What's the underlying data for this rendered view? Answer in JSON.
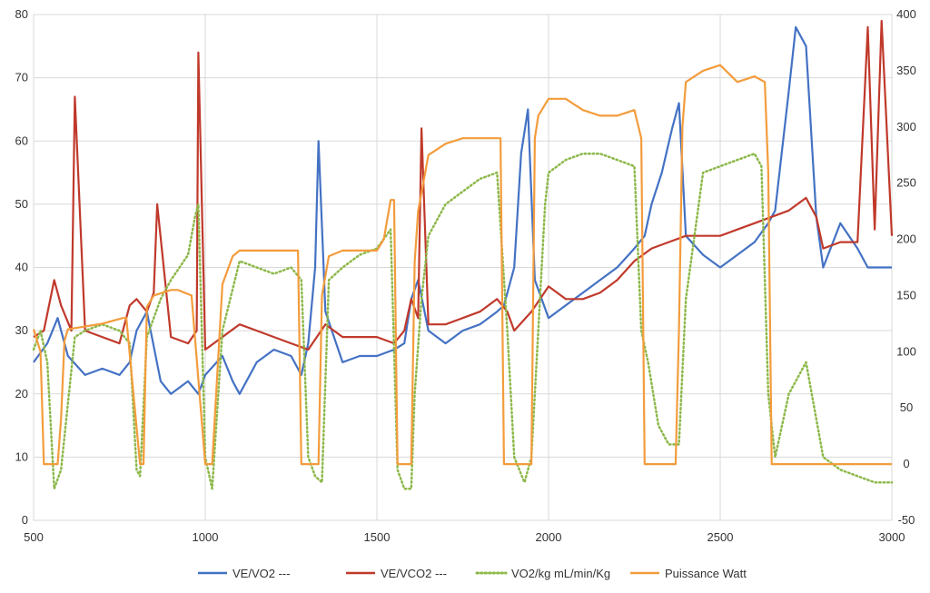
{
  "chart_data": {
    "type": "line",
    "title": "",
    "xlabel": "",
    "ylabel": "",
    "y2label": "",
    "grid": true,
    "legend_position": "bottom",
    "xlim": [
      500,
      3000
    ],
    "ylim": [
      0,
      80
    ],
    "y2lim": [
      -50,
      400
    ],
    "x_ticks": [
      "500",
      "1000",
      "1500",
      "2000",
      "2500",
      "3000"
    ],
    "y_ticks": [
      "0",
      "10",
      "20",
      "30",
      "40",
      "50",
      "60",
      "70",
      "80"
    ],
    "y2_ticks": [
      "-50",
      "0",
      "50",
      "100",
      "150",
      "200",
      "250",
      "300",
      "350",
      "400"
    ],
    "series": [
      {
        "name": "VE/VO2 ---",
        "axis": "left",
        "color": "#4472C4",
        "style": "solid",
        "x": [
          500,
          540,
          570,
          600,
          650,
          700,
          750,
          780,
          800,
          830,
          870,
          900,
          950,
          980,
          1000,
          1050,
          1080,
          1100,
          1150,
          1200,
          1250,
          1280,
          1300,
          1320,
          1330,
          1350,
          1400,
          1450,
          1500,
          1550,
          1580,
          1600,
          1620,
          1650,
          1700,
          1750,
          1800,
          1850,
          1870,
          1900,
          1920,
          1940,
          1960,
          2000,
          2050,
          2100,
          2150,
          2200,
          2250,
          2280,
          2300,
          2330,
          2360,
          2380,
          2400,
          2450,
          2500,
          2550,
          2600,
          2640,
          2660,
          2700,
          2720,
          2750,
          2780,
          2800,
          2850,
          2900,
          2930,
          2950,
          3000
        ],
        "y": [
          25,
          28,
          32,
          26,
          23,
          24,
          23,
          25,
          30,
          33,
          22,
          20,
          22,
          20,
          23,
          26,
          22,
          20,
          25,
          27,
          26,
          23,
          28,
          40,
          60,
          33,
          25,
          26,
          26,
          27,
          28,
          35,
          38,
          30,
          28,
          30,
          31,
          33,
          34,
          40,
          58,
          65,
          38,
          32,
          34,
          36,
          38,
          40,
          43,
          45,
          50,
          55,
          62,
          66,
          45,
          42,
          40,
          42,
          44,
          47,
          49,
          68,
          78,
          75,
          48,
          40,
          47,
          43,
          40,
          40,
          40
        ]
      },
      {
        "name": "VE/VCO2 ---",
        "axis": "left",
        "color": "#C0392B",
        "style": "solid",
        "x": [
          500,
          530,
          560,
          580,
          610,
          620,
          650,
          700,
          750,
          780,
          800,
          830,
          850,
          860,
          900,
          950,
          975,
          980,
          1000,
          1050,
          1100,
          1150,
          1200,
          1250,
          1300,
          1350,
          1400,
          1450,
          1500,
          1550,
          1580,
          1600,
          1620,
          1630,
          1650,
          1700,
          1750,
          1800,
          1850,
          1880,
          1900,
          1950,
          2000,
          2050,
          2100,
          2150,
          2200,
          2250,
          2300,
          2350,
          2400,
          2450,
          2500,
          2550,
          2600,
          2650,
          2700,
          2750,
          2780,
          2800,
          2850,
          2900,
          2930,
          2950,
          2970,
          3000
        ],
        "y": [
          29,
          30,
          38,
          34,
          30,
          67,
          30,
          29,
          28,
          34,
          35,
          33,
          36,
          50,
          29,
          28,
          30,
          74,
          27,
          29,
          31,
          30,
          29,
          28,
          27,
          31,
          29,
          29,
          29,
          28,
          30,
          35,
          32,
          62,
          31,
          31,
          32,
          33,
          35,
          33,
          30,
          33,
          37,
          35,
          35,
          36,
          38,
          41,
          43,
          44,
          45,
          45,
          45,
          46,
          47,
          48,
          49,
          51,
          48,
          43,
          44,
          44,
          78,
          46,
          79,
          45
        ]
      },
      {
        "name": "VO2/kg mL/min/Kg",
        "axis": "left",
        "color": "#8DB84A",
        "style": "dotted",
        "x": [
          500,
          520,
          540,
          560,
          580,
          620,
          650,
          700,
          750,
          780,
          800,
          810,
          830,
          850,
          870,
          900,
          950,
          970,
          980,
          1000,
          1020,
          1050,
          1100,
          1150,
          1200,
          1250,
          1280,
          1300,
          1320,
          1340,
          1360,
          1400,
          1450,
          1500,
          1540,
          1560,
          1580,
          1600,
          1610,
          1630,
          1650,
          1700,
          1750,
          1800,
          1850,
          1880,
          1900,
          1930,
          1950,
          1970,
          1990,
          2000,
          2050,
          2100,
          2150,
          2200,
          2250,
          2270,
          2290,
          2320,
          2350,
          2380,
          2400,
          2450,
          2500,
          2550,
          2600,
          2620,
          2640,
          2660,
          2700,
          2750,
          2800,
          2850,
          2900,
          2950,
          3000
        ],
        "y": [
          27,
          30,
          25,
          5,
          8,
          29,
          30,
          31,
          30,
          28,
          8,
          7,
          29,
          32,
          35,
          38,
          42,
          48,
          50,
          10,
          5,
          30,
          41,
          40,
          39,
          40,
          38,
          10,
          7,
          6,
          38,
          40,
          42,
          43,
          46,
          8,
          5,
          5,
          20,
          35,
          45,
          50,
          52,
          54,
          55,
          30,
          10,
          6,
          10,
          30,
          50,
          55,
          57,
          58,
          58,
          57,
          56,
          30,
          25,
          15,
          12,
          12,
          35,
          55,
          56,
          57,
          58,
          56,
          20,
          10,
          20,
          25,
          10,
          8,
          7,
          6,
          6
        ]
      },
      {
        "name": "Puissance Watt",
        "axis": "right",
        "color": "#F39C3C",
        "style": "solid",
        "x": [
          500,
          520,
          530,
          570,
          580,
          590,
          600,
          700,
          760,
          770,
          810,
          820,
          830,
          850,
          900,
          920,
          960,
          1000,
          1020,
          1050,
          1080,
          1100,
          1200,
          1250,
          1270,
          1280,
          1320,
          1330,
          1340,
          1360,
          1400,
          1450,
          1500,
          1520,
          1540,
          1550,
          1560,
          1600,
          1610,
          1620,
          1650,
          1700,
          1750,
          1800,
          1850,
          1860,
          1870,
          1880,
          1950,
          1960,
          1970,
          2000,
          2050,
          2100,
          2150,
          2200,
          2250,
          2270,
          2280,
          2300,
          2370,
          2380,
          2390,
          2400,
          2450,
          2500,
          2550,
          2600,
          2630,
          2640,
          2650,
          3000
        ],
        "y": [
          120,
          100,
          0,
          0,
          40,
          110,
          120,
          125,
          130,
          130,
          0,
          0,
          140,
          150,
          155,
          155,
          150,
          0,
          0,
          160,
          185,
          190,
          190,
          190,
          190,
          0,
          0,
          0,
          150,
          185,
          190,
          190,
          190,
          200,
          235,
          235,
          0,
          0,
          180,
          225,
          275,
          285,
          290,
          290,
          290,
          290,
          0,
          0,
          0,
          290,
          310,
          325,
          325,
          315,
          310,
          310,
          315,
          290,
          0,
          0,
          0,
          120,
          300,
          340,
          350,
          355,
          340,
          345,
          340,
          260,
          0,
          0
        ]
      }
    ]
  }
}
